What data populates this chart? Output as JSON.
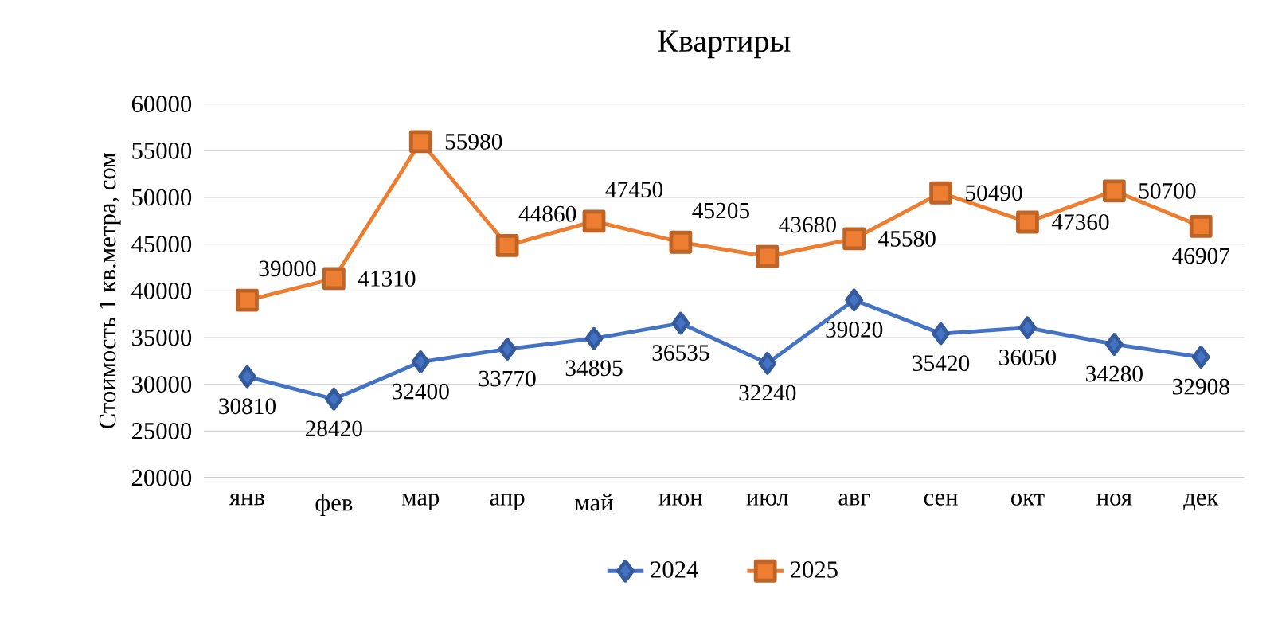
{
  "chart_data": {
    "type": "line",
    "title": "Квартиры",
    "ylabel": "Стоимость 1 кв.метра, сом",
    "categories": [
      "янв",
      "фев",
      "мар",
      "апр",
      "май",
      "июн",
      "июл",
      "авг",
      "сен",
      "окт",
      "ноя",
      "дек"
    ],
    "series": [
      {
        "name": "2024",
        "color": "#4472c4",
        "marker": "diamond",
        "values": [
          30810,
          28420,
          32400,
          33770,
          34895,
          36535,
          32240,
          39020,
          35420,
          36050,
          34280,
          32908
        ],
        "value_labels": [
          "30810",
          "28420",
          "32400",
          "33770",
          "34895",
          "36535",
          "32240",
          "39020",
          "35420",
          "36050",
          "34280",
          "32908"
        ]
      },
      {
        "name": "2025",
        "color": "#ed7d31",
        "marker": "square",
        "values": [
          39000,
          41310,
          55980,
          44860,
          47450,
          45205,
          43680,
          45580,
          50490,
          47360,
          50700,
          46907
        ],
        "value_labels": [
          "39000",
          "41310",
          "55980",
          "44860",
          "47450",
          "45205",
          "43680",
          "45580",
          "50490",
          "47360",
          "50700",
          "46907"
        ]
      }
    ],
    "ylim": [
      20000,
      60000
    ],
    "yticks": [
      20000,
      25000,
      30000,
      35000,
      40000,
      45000,
      50000,
      55000,
      60000
    ],
    "grid": "y",
    "legend": "bottom",
    "line_style": "solid"
  }
}
